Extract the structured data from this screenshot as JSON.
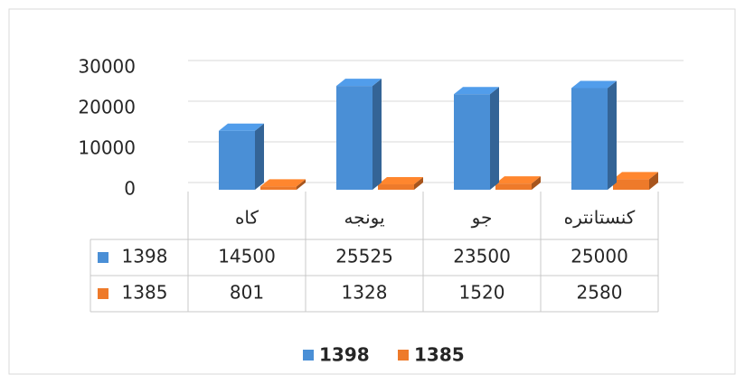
{
  "chart_data": {
    "type": "bar3d",
    "categories": [
      "كاه",
      "يونجه",
      "جو",
      "كنستانتره"
    ],
    "series": [
      {
        "name": "1398",
        "color": "#4a8fd6",
        "values": [
          14500,
          25525,
          23500,
          25000
        ]
      },
      {
        "name": "1385",
        "color": "#ee7a2a",
        "values": [
          801,
          1328,
          1520,
          2580
        ]
      }
    ],
    "ylim": [
      0,
      30000
    ],
    "yticks": [
      0,
      10000,
      20000,
      30000
    ],
    "grid": true,
    "data_table": true,
    "legend": "bottom"
  }
}
